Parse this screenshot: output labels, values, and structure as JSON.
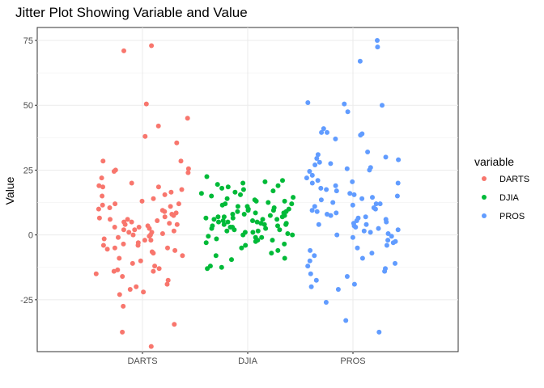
{
  "chart_data": {
    "type": "scatter",
    "subtype": "jitter",
    "title": "Jitter Plot Showing Variable and Value",
    "xlabel": "",
    "ylabel": "Value",
    "categories": [
      "DARTS",
      "DJIA",
      "PROS"
    ],
    "ylim": [
      -45,
      80
    ],
    "yticks": [
      -25,
      0,
      25,
      50,
      75
    ],
    "grid": true,
    "legend": {
      "title": "variable",
      "placement": "right",
      "entries": [
        "DARTS",
        "DJIA",
        "PROS"
      ]
    },
    "colors": {
      "DARTS": "#F8766D",
      "DJIA": "#00BA38",
      "PROS": "#619CFF"
    },
    "series": [
      {
        "name": "DARTS",
        "x": "DARTS",
        "values": [
          73,
          71,
          50.5,
          45,
          42,
          38,
          35.5,
          28.5,
          28.5,
          25.5,
          25,
          24.5,
          24,
          22,
          20,
          19,
          18.5,
          18.5,
          17.5,
          16.5,
          15.5,
          15,
          14,
          13,
          12,
          12,
          11.5,
          11,
          10.5,
          10,
          9.5,
          9,
          8.5,
          8,
          7.5,
          7,
          6.5,
          6,
          6,
          5.5,
          5,
          5,
          4.5,
          4,
          4,
          3.5,
          3,
          3,
          2.5,
          2,
          2,
          1.5,
          1,
          1,
          0.5,
          0,
          0,
          -0.5,
          -1,
          -1.5,
          -2,
          -2,
          -3,
          -3.5,
          -4,
          -4,
          -5,
          -5,
          -5.5,
          -6,
          -6.5,
          -7,
          -8,
          -9,
          -10,
          -11,
          -12,
          -13,
          -13.5,
          -14,
          -14,
          -15,
          -16,
          -17.5,
          -19,
          -20,
          -21,
          -22,
          -23,
          -27.5,
          -34.5,
          -37.5,
          -43
        ]
      },
      {
        "name": "DJIA",
        "x": "DJIA",
        "values": [
          22.5,
          21,
          20.5,
          20,
          19.5,
          19,
          18.5,
          18,
          17.5,
          17,
          16.5,
          16,
          15.5,
          15,
          14.5,
          14,
          13.5,
          13,
          13,
          12.5,
          12,
          12,
          11.5,
          11,
          11,
          10.5,
          10,
          10,
          9.5,
          9.5,
          9,
          9,
          8.5,
          8.5,
          8,
          8,
          7.5,
          7.5,
          7,
          7,
          7,
          6.5,
          6.5,
          6,
          6,
          6,
          5.5,
          5.5,
          5,
          5,
          5,
          4.5,
          4.5,
          4,
          4,
          4,
          3.5,
          3.5,
          3,
          3,
          2.5,
          2.5,
          2,
          2,
          1.5,
          1.5,
          1,
          1,
          0.5,
          0,
          0,
          -0.5,
          -1,
          -1,
          -1.5,
          -2,
          -2,
          -2.5,
          -3,
          -3.5,
          -4,
          -5,
          -6,
          -7,
          -8,
          -9,
          -9.5,
          -12,
          -12.5,
          -13
        ]
      },
      {
        "name": "PROS",
        "x": "PROS",
        "values": [
          75,
          72.5,
          67,
          51,
          50.5,
          50,
          47.5,
          41,
          39.5,
          39.5,
          39,
          38.5,
          37,
          32,
          31,
          30,
          29.5,
          29,
          28,
          27.5,
          27,
          26,
          25.5,
          25,
          24.5,
          23,
          22,
          21,
          20.5,
          20,
          20,
          19,
          18,
          17.5,
          17,
          16,
          15.5,
          15,
          14.5,
          14,
          13.5,
          12.5,
          12,
          12,
          11.5,
          11,
          10.5,
          10,
          9.5,
          9,
          8.5,
          8,
          7.5,
          7,
          6.5,
          6,
          5.5,
          5,
          4.5,
          4,
          4,
          3.5,
          3,
          2.5,
          2,
          1.5,
          1,
          0.5,
          0,
          -0.5,
          -1,
          -2,
          -2.5,
          -3,
          -4,
          -5,
          -6,
          -7,
          -8,
          -9,
          -10,
          -11,
          -12,
          -13,
          -14,
          -15,
          -16,
          -17.5,
          -19,
          -20,
          -21,
          -26,
          -33,
          -37.5
        ]
      }
    ]
  }
}
